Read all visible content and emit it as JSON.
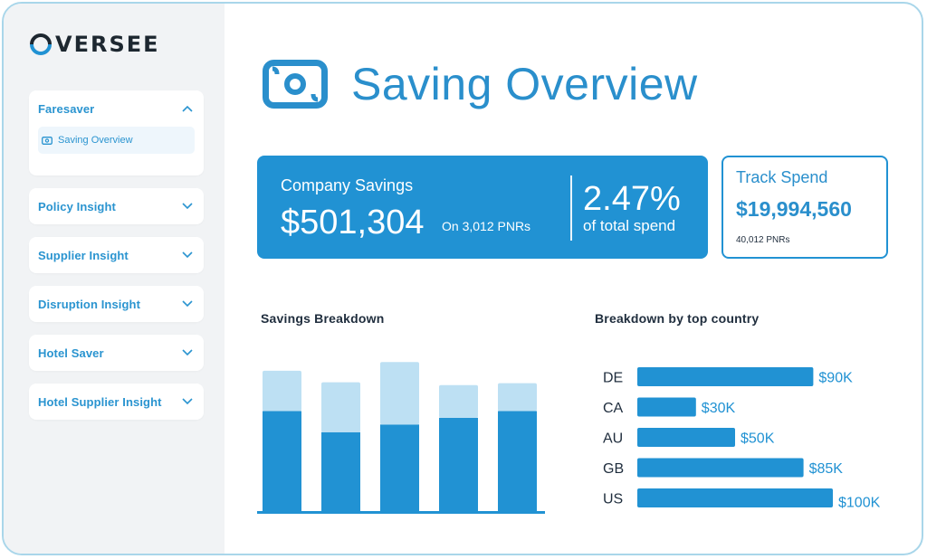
{
  "app": {
    "logo_text": "VERSEE",
    "logo_full": "OVERSEE"
  },
  "sidebar": {
    "items": [
      {
        "label": "Faresaver",
        "expanded": true,
        "children": [
          {
            "label": "Saving Overview",
            "icon": "money-icon"
          }
        ]
      },
      {
        "label": "Policy Insight",
        "expanded": false
      },
      {
        "label": "Supplier Insight",
        "expanded": false
      },
      {
        "label": "Disruption Insight",
        "expanded": false
      },
      {
        "label": "Hotel Saver",
        "expanded": false
      },
      {
        "label": "Hotel Supplier Insight",
        "expanded": false
      }
    ]
  },
  "page": {
    "title": "Saving Overview",
    "title_icon": "money-icon"
  },
  "savings_card": {
    "label": "Company Savings",
    "amount": "$501,304",
    "pnrs": "On 3,012 PNRs",
    "percent": "2.47%",
    "percent_label": "of total spend"
  },
  "track_card": {
    "label": "Track Spend",
    "amount": "$19,994,560",
    "pnrs": "40,012 PNRs"
  },
  "savings_breakdown": {
    "title": "Savings Breakdown"
  },
  "country_breakdown": {
    "title": "Breakdown by top country"
  },
  "colors": {
    "accent": "#2192d3",
    "accent_light": "#bde0f3",
    "sidebar_bg": "#f1f3f5",
    "text_dark": "#1f2d3d"
  },
  "chart_data": [
    {
      "type": "bar",
      "stacked": true,
      "categories": [
        "",
        "",
        "",
        "",
        ""
      ],
      "series": [
        {
          "values": [
            10.5,
            8.3,
            9.1,
            9.8,
            10.5
          ]
        },
        {
          "values": [
            4.2,
            5.2,
            6.5,
            3.4,
            2.9
          ]
        }
      ],
      "ylim": [
        0,
        16
      ],
      "grid": false
    },
    {
      "type": "bar",
      "orientation": "horizontal",
      "categories": [
        "DE",
        "CA",
        "AU",
        "GB",
        "US"
      ],
      "values": [
        90,
        30,
        50,
        85,
        100
      ],
      "value_labels": [
        "$90K",
        "$30K",
        "$50K",
        "$85K",
        "$100K"
      ],
      "xlim": [
        0,
        100
      ],
      "grid": false
    }
  ]
}
